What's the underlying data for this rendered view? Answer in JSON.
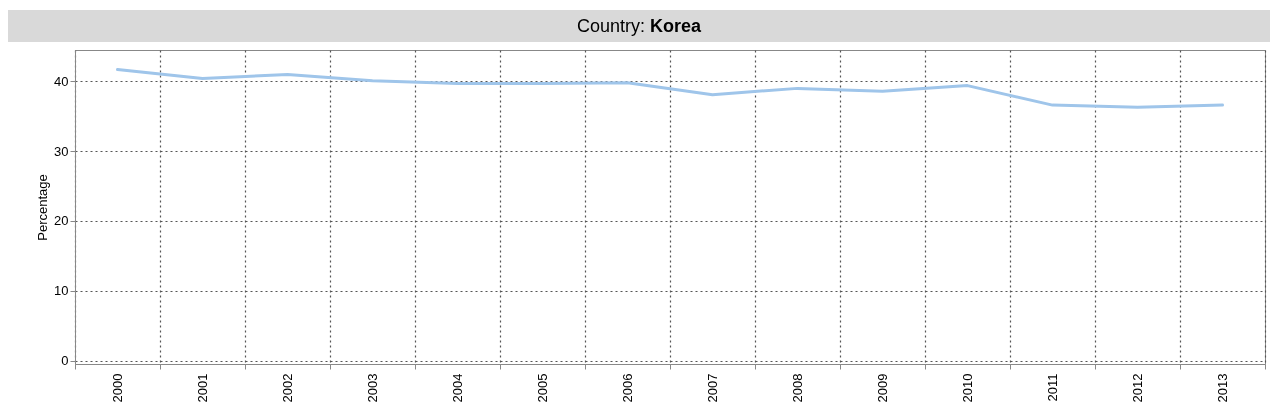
{
  "chart_data": {
    "type": "line",
    "title": "Country: Korea",
    "ylabel": "Percentage",
    "categories": [
      "2000",
      "2001",
      "2002",
      "2003",
      "2004",
      "2005",
      "2006",
      "2007",
      "2008",
      "2009",
      "2010",
      "2011",
      "2012",
      "2013"
    ],
    "series": [
      {
        "color": "#9fc5ea",
        "values": [
          41.7,
          40.4,
          41.0,
          40.1,
          39.7,
          39.7,
          39.8,
          38.1,
          39.0,
          38.6,
          39.4,
          36.6,
          36.3,
          36.6
        ]
      }
    ],
    "ylim": [
      -0.5,
      44.5
    ],
    "yticks": [
      0,
      10,
      20,
      30,
      40
    ],
    "grid": true,
    "marker": "none",
    "line_style": "solid"
  }
}
